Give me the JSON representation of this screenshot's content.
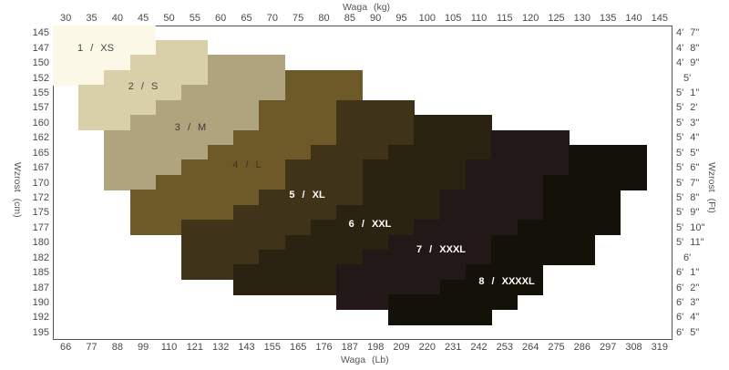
{
  "chart_data": {
    "type": "heatmap",
    "title": "",
    "xlabel_top": "Waga (kg)",
    "xlabel_bottom": "Waga (Lb)",
    "ylabel_left": "Wzrost (cm)",
    "ylabel_right": "Wzrost (Ft)",
    "x_kg_ticks": [
      "30",
      "35",
      "40",
      "45",
      "50",
      "55",
      "60",
      "65",
      "70",
      "75",
      "80",
      "85",
      "90",
      "95",
      "100",
      "105",
      "110",
      "115",
      "120",
      "125",
      "130",
      "135",
      "140",
      "145"
    ],
    "x_lb_ticks": [
      "66",
      "77",
      "88",
      "99",
      "110",
      "121",
      "132",
      "143",
      "155",
      "165",
      "176",
      "187",
      "198",
      "209",
      "220",
      "231",
      "242",
      "253",
      "264",
      "275",
      "286",
      "297",
      "308",
      "319"
    ],
    "y_cm_ticks": [
      "145",
      "147",
      "150",
      "152",
      "155",
      "157",
      "160",
      "162",
      "165",
      "167",
      "170",
      "172",
      "175",
      "177",
      "180",
      "182",
      "185",
      "187",
      "190",
      "192",
      "195"
    ],
    "y_ft_ticks": [
      "4'  7\"",
      "4'  8\"",
      "4'  9\"",
      "5'",
      "5'  1\"",
      "5'  2'",
      "5'  3\"",
      "5'  4\"",
      "5'  5\"",
      "5'  6\"",
      "5'  7\"",
      "5'  8\"",
      "5'  9\"",
      "5'  10\"",
      "5'  11\"",
      "6'",
      "6'  1\"",
      "6'  2\"",
      "6'  3\"",
      "6'  4\"",
      "6'  5\""
    ],
    "sizes": [
      {
        "label": "1 / XS",
        "color": "#fbf8e8",
        "text_color": "#444444",
        "rows": [
          [
            145,
            30,
            45
          ],
          [
            147,
            30,
            45
          ],
          [
            150,
            30,
            40
          ],
          [
            152,
            30,
            35
          ]
        ]
      },
      {
        "label": "2 / S",
        "color": "#d9d0aa",
        "text_color": "#444444",
        "rows": [
          [
            147,
            50,
            55
          ],
          [
            150,
            45,
            55
          ],
          [
            152,
            40,
            55
          ],
          [
            155,
            35,
            50
          ],
          [
            157,
            35,
            45
          ],
          [
            160,
            35,
            40
          ]
        ]
      },
      {
        "label": "3 / M",
        "color": "#b0a47e",
        "text_color": "#3a3a3a",
        "rows": [
          [
            150,
            60,
            70
          ],
          [
            152,
            60,
            70
          ],
          [
            155,
            55,
            70
          ],
          [
            157,
            50,
            65
          ],
          [
            160,
            45,
            65
          ],
          [
            162,
            40,
            60
          ],
          [
            165,
            40,
            55
          ],
          [
            167,
            40,
            50
          ],
          [
            170,
            40,
            45
          ]
        ]
      },
      {
        "label": "4 / L",
        "color": "#6d5a28",
        "text_color": "#3a3520",
        "rows": [
          [
            152,
            75,
            85
          ],
          [
            155,
            75,
            85
          ],
          [
            157,
            70,
            80
          ],
          [
            160,
            70,
            80
          ],
          [
            162,
            65,
            80
          ],
          [
            165,
            60,
            75
          ],
          [
            167,
            55,
            70
          ],
          [
            170,
            50,
            70
          ],
          [
            172,
            45,
            65
          ],
          [
            175,
            45,
            60
          ],
          [
            177,
            45,
            50
          ]
        ]
      },
      {
        "label": "5 / XL",
        "color": "#3f3419",
        "text_color": "#ffffff",
        "rows": [
          [
            157,
            85,
            95
          ],
          [
            160,
            85,
            95
          ],
          [
            162,
            85,
            95
          ],
          [
            165,
            80,
            90
          ],
          [
            167,
            75,
            90
          ],
          [
            170,
            75,
            85
          ],
          [
            172,
            70,
            85
          ],
          [
            175,
            65,
            80
          ],
          [
            177,
            55,
            75
          ],
          [
            180,
            55,
            70
          ],
          [
            182,
            55,
            65
          ],
          [
            185,
            55,
            60
          ]
        ]
      },
      {
        "label": "6 / XXL",
        "color": "#2b2312",
        "text_color": "#ffffff",
        "rows": [
          [
            160,
            100,
            110
          ],
          [
            162,
            100,
            110
          ],
          [
            165,
            95,
            110
          ],
          [
            167,
            90,
            105
          ],
          [
            170,
            90,
            105
          ],
          [
            172,
            90,
            100
          ],
          [
            175,
            85,
            100
          ],
          [
            177,
            80,
            95
          ],
          [
            180,
            75,
            90
          ],
          [
            182,
            70,
            85
          ],
          [
            185,
            65,
            80
          ],
          [
            187,
            65,
            80
          ]
        ]
      },
      {
        "label": "7 / XXXL",
        "color": "#221818",
        "text_color": "#ffffff",
        "rows": [
          [
            162,
            115,
            125
          ],
          [
            165,
            115,
            125
          ],
          [
            167,
            110,
            125
          ],
          [
            170,
            110,
            120
          ],
          [
            172,
            105,
            120
          ],
          [
            175,
            105,
            120
          ],
          [
            177,
            100,
            115
          ],
          [
            180,
            95,
            110
          ],
          [
            182,
            90,
            110
          ],
          [
            185,
            85,
            105
          ],
          [
            187,
            85,
            100
          ],
          [
            190,
            85,
            90
          ]
        ]
      },
      {
        "label": "8 / XXXXL",
        "color": "#141208",
        "text_color": "#ffffff",
        "rows": [
          [
            165,
            130,
            140
          ],
          [
            167,
            130,
            140
          ],
          [
            170,
            125,
            140
          ],
          [
            172,
            125,
            135
          ],
          [
            175,
            125,
            135
          ],
          [
            177,
            120,
            135
          ],
          [
            180,
            115,
            130
          ],
          [
            182,
            115,
            130
          ],
          [
            185,
            110,
            120
          ],
          [
            187,
            105,
            120
          ],
          [
            190,
            95,
            115
          ],
          [
            192,
            95,
            110
          ]
        ]
      }
    ]
  }
}
